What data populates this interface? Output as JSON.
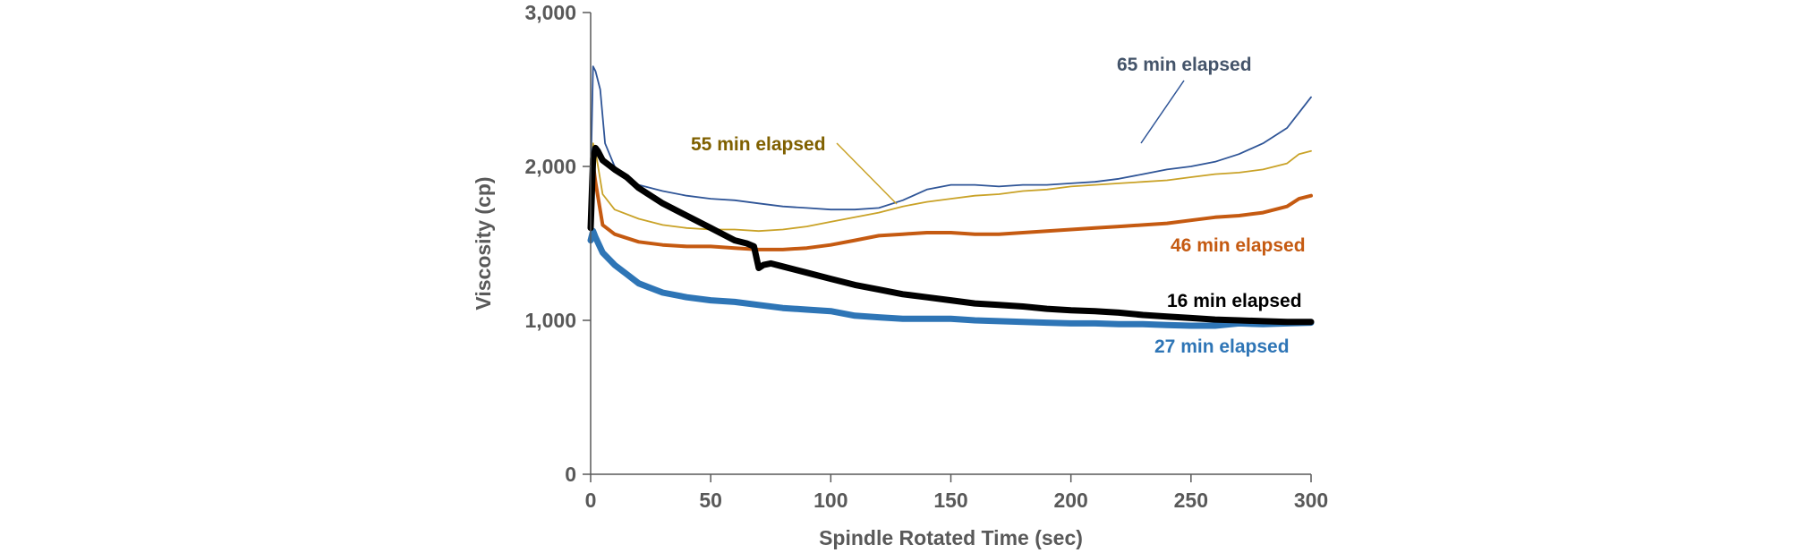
{
  "chart_data": {
    "type": "line",
    "title": "",
    "xlabel": "Spindle Rotated Time (sec)",
    "ylabel": "Viscosity (cp)",
    "xlim": [
      0,
      300
    ],
    "ylim": [
      0,
      3000
    ],
    "x_ticks": [
      0,
      50,
      100,
      150,
      200,
      250,
      300
    ],
    "x_tick_labels": [
      "0",
      "50",
      "100",
      "150",
      "200",
      "250",
      "300"
    ],
    "y_ticks": [
      0,
      1000,
      2000,
      3000
    ],
    "y_tick_labels": [
      "0",
      "1,000",
      "2,000",
      "3,000"
    ],
    "grid": false,
    "legend": "none (direct series labels)",
    "series": [
      {
        "name": "16 min elapsed",
        "color": "#000000",
        "line_width": "thick",
        "x": [
          0,
          1,
          2,
          3,
          5,
          10,
          15,
          20,
          25,
          30,
          40,
          50,
          60,
          65,
          68,
          70,
          72,
          75,
          80,
          90,
          100,
          110,
          120,
          130,
          140,
          150,
          160,
          170,
          180,
          190,
          200,
          210,
          220,
          230,
          240,
          250,
          260,
          270,
          280,
          290,
          300
        ],
        "y": [
          1600,
          2050,
          2120,
          2100,
          2040,
          1980,
          1930,
          1860,
          1810,
          1760,
          1680,
          1600,
          1520,
          1500,
          1480,
          1340,
          1360,
          1370,
          1350,
          1310,
          1270,
          1230,
          1200,
          1170,
          1150,
          1130,
          1110,
          1100,
          1090,
          1075,
          1065,
          1060,
          1050,
          1035,
          1025,
          1015,
          1005,
          1000,
          995,
          990,
          990
        ]
      },
      {
        "name": "27 min elapsed",
        "color": "#2e75b6",
        "line_width": "thick",
        "x": [
          0,
          1,
          2,
          5,
          10,
          15,
          20,
          25,
          30,
          40,
          50,
          60,
          70,
          80,
          90,
          100,
          110,
          120,
          130,
          140,
          150,
          160,
          170,
          180,
          190,
          200,
          210,
          220,
          230,
          240,
          250,
          260,
          270,
          280,
          290,
          300
        ],
        "y": [
          1520,
          1580,
          1540,
          1440,
          1360,
          1300,
          1240,
          1210,
          1180,
          1150,
          1130,
          1120,
          1100,
          1080,
          1070,
          1060,
          1030,
          1020,
          1010,
          1010,
          1010,
          1000,
          995,
          990,
          985,
          980,
          980,
          975,
          975,
          970,
          965,
          965,
          980,
          975,
          980,
          985
        ]
      },
      {
        "name": "46 min elapsed",
        "color": "#c55a11",
        "line_width": "medium",
        "x": [
          0,
          1,
          2,
          5,
          10,
          20,
          30,
          40,
          50,
          60,
          70,
          80,
          90,
          100,
          110,
          120,
          130,
          140,
          150,
          160,
          170,
          180,
          190,
          200,
          210,
          220,
          230,
          240,
          250,
          260,
          270,
          280,
          290,
          295,
          300
        ],
        "y": [
          1700,
          2020,
          1900,
          1620,
          1560,
          1510,
          1490,
          1480,
          1480,
          1470,
          1460,
          1460,
          1470,
          1490,
          1520,
          1550,
          1560,
          1570,
          1570,
          1560,
          1560,
          1570,
          1580,
          1590,
          1600,
          1610,
          1620,
          1630,
          1650,
          1670,
          1680,
          1700,
          1740,
          1790,
          1810
        ]
      },
      {
        "name": "55 min elapsed",
        "color": "#c9a227",
        "line_width": "thin",
        "x": [
          0,
          1,
          2,
          5,
          10,
          20,
          30,
          40,
          50,
          60,
          70,
          80,
          90,
          100,
          110,
          120,
          130,
          140,
          150,
          160,
          170,
          180,
          190,
          200,
          210,
          220,
          230,
          240,
          250,
          260,
          270,
          280,
          290,
          295,
          300
        ],
        "y": [
          1850,
          2150,
          2100,
          1820,
          1720,
          1660,
          1620,
          1600,
          1590,
          1590,
          1580,
          1590,
          1610,
          1640,
          1670,
          1700,
          1740,
          1770,
          1790,
          1810,
          1820,
          1840,
          1850,
          1870,
          1880,
          1890,
          1900,
          1910,
          1930,
          1950,
          1960,
          1980,
          2020,
          2080,
          2100
        ]
      },
      {
        "name": "65 min elapsed",
        "color": "#2f5597",
        "line_width": "thin",
        "x": [
          0,
          1,
          2,
          4,
          6,
          10,
          15,
          20,
          30,
          40,
          50,
          60,
          70,
          80,
          90,
          100,
          110,
          120,
          130,
          140,
          150,
          160,
          170,
          180,
          190,
          200,
          210,
          220,
          230,
          240,
          250,
          260,
          270,
          280,
          290,
          295,
          300
        ],
        "y": [
          1900,
          2650,
          2620,
          2500,
          2150,
          2000,
          1920,
          1880,
          1840,
          1810,
          1790,
          1780,
          1760,
          1740,
          1730,
          1720,
          1720,
          1730,
          1780,
          1850,
          1880,
          1880,
          1870,
          1880,
          1880,
          1890,
          1900,
          1920,
          1950,
          1980,
          2000,
          2030,
          2080,
          2150,
          2250,
          2350,
          2450
        ]
      }
    ],
    "annotations": [
      {
        "text": "65 min elapsed",
        "series": "65 min elapsed",
        "leader_line": true
      },
      {
        "text": "55 min elapsed",
        "series": "55 min elapsed",
        "leader_line": true
      },
      {
        "text": "46 min elapsed",
        "series": "46 min elapsed",
        "leader_line": false
      },
      {
        "text": "16 min elapsed",
        "series": "16 min elapsed",
        "leader_line": false
      },
      {
        "text": "27 min elapsed",
        "series": "27 min elapsed",
        "leader_line": false
      }
    ]
  }
}
